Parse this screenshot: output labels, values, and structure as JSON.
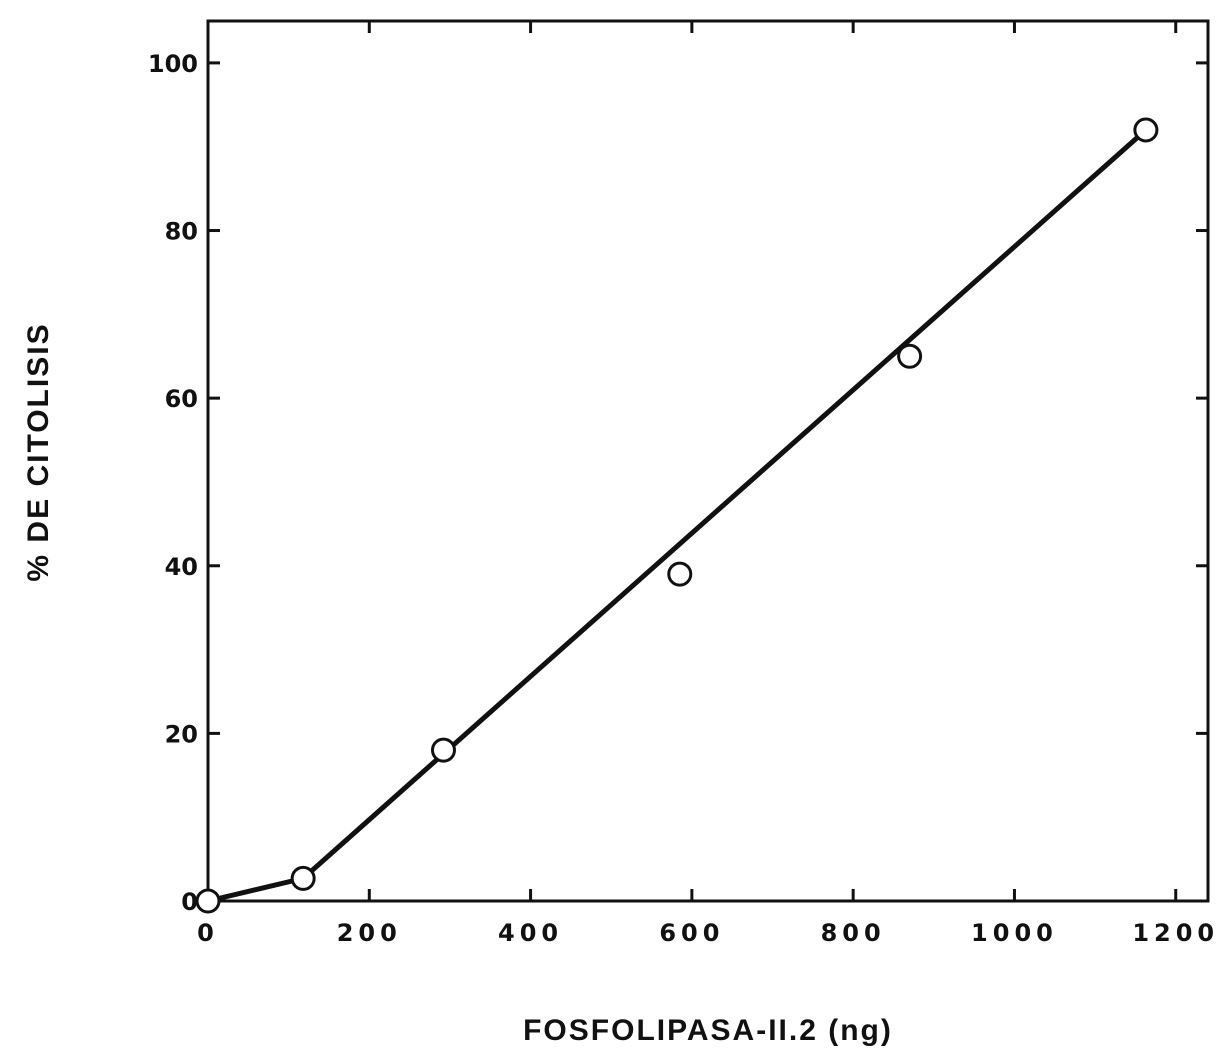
{
  "chart_data": {
    "type": "line",
    "title": "",
    "xlabel": "FOSFOLIPASA-II.2  (ng)",
    "ylabel": "% DE CITOLISIS",
    "xlim": [
      0,
      1240
    ],
    "ylim": [
      0,
      105
    ],
    "x_ticks": [
      0,
      200,
      400,
      600,
      800,
      1000,
      1200
    ],
    "y_ticks": [
      0,
      20,
      40,
      60,
      80,
      100
    ],
    "x_tick_labels": [
      "0",
      "200",
      "400",
      "600",
      "800",
      "1000",
      "1200"
    ],
    "y_tick_labels": [
      "0",
      "20",
      "40",
      "60",
      "80",
      "100"
    ],
    "grid": false,
    "legend": "none",
    "series": [
      {
        "marker": "open-circle",
        "points": [
          {
            "x": 0,
            "y": 0
          },
          {
            "x": 118,
            "y": 2.7
          },
          {
            "x": 292,
            "y": 18
          },
          {
            "x": 585,
            "y": 39
          },
          {
            "x": 870,
            "y": 65
          },
          {
            "x": 1163,
            "y": 92
          }
        ]
      }
    ],
    "line": {
      "points": [
        {
          "x": 0,
          "y": 0
        },
        {
          "x": 118,
          "y": 2.7
        },
        {
          "x": 1163,
          "y": 92
        }
      ]
    }
  }
}
